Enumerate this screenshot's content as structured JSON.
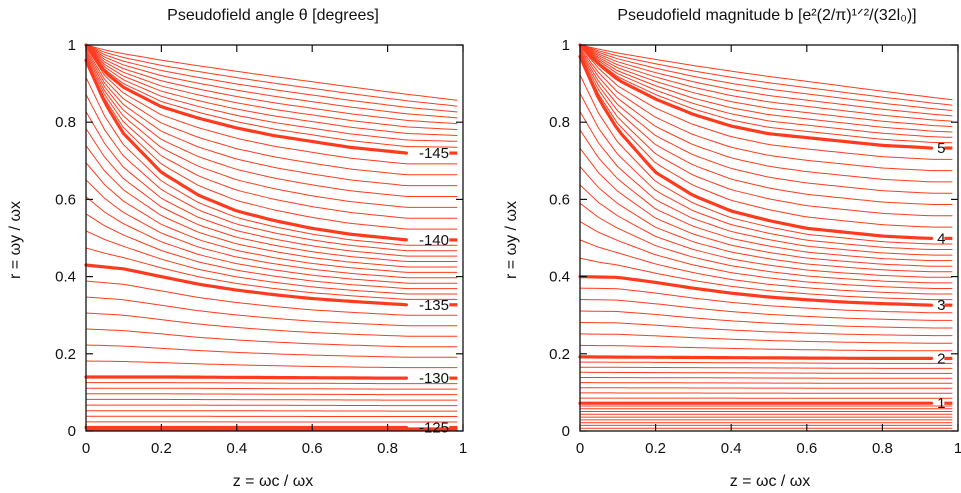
{
  "chart_data": [
    {
      "type": "line",
      "subtype": "contour",
      "title": "Pseudofield angle θ [degrees]",
      "xlabel": "z = ωc / ωx",
      "ylabel": "r = ωy / ωx",
      "xlim": [
        0,
        1
      ],
      "ylim": [
        0,
        1
      ],
      "xticks": [
        "0",
        "0.2",
        "0.4",
        "0.6",
        "0.8",
        "1"
      ],
      "yticks": [
        "0",
        "0.2",
        "0.4",
        "0.6",
        "0.8",
        "1"
      ],
      "grid": false,
      "color": "#ff3b1f",
      "labeled_levels": [
        {
          "label": "-145",
          "x": [
            0,
            0.05,
            0.1,
            0.2,
            0.3,
            0.4,
            0.5,
            0.6,
            0.7,
            0.8,
            0.85
          ],
          "y": [
            1.0,
            0.93,
            0.89,
            0.84,
            0.81,
            0.785,
            0.765,
            0.75,
            0.735,
            0.725,
            0.72
          ]
        },
        {
          "label": "-140",
          "x": [
            0,
            0.05,
            0.1,
            0.2,
            0.3,
            0.4,
            0.5,
            0.6,
            0.7,
            0.8,
            0.85
          ],
          "y": [
            0.96,
            0.85,
            0.77,
            0.67,
            0.61,
            0.57,
            0.545,
            0.525,
            0.51,
            0.5,
            0.495
          ]
        },
        {
          "label": "-135",
          "x": [
            0,
            0.1,
            0.2,
            0.3,
            0.4,
            0.5,
            0.6,
            0.7,
            0.8,
            0.85
          ],
          "y": [
            0.43,
            0.42,
            0.4,
            0.38,
            0.365,
            0.353,
            0.343,
            0.336,
            0.33,
            0.327
          ]
        },
        {
          "label": "-130",
          "x": [
            0,
            0.2,
            0.4,
            0.6,
            0.8,
            0.85
          ],
          "y": [
            0.14,
            0.14,
            0.139,
            0.138,
            0.137,
            0.137
          ]
        },
        {
          "label": "-125",
          "x": [
            0,
            0.2,
            0.4,
            0.6,
            0.8,
            0.85
          ],
          "y": [
            0.009,
            0.009,
            0.009,
            0.009,
            0.009,
            0.009
          ]
        }
      ],
      "line_label_x": 0.87
    },
    {
      "type": "line",
      "subtype": "contour",
      "title": "Pseudofield magnitude b [e²(2/π)¹ᐟ²/(32l₀)]",
      "xlabel": "z = ωc / ωx",
      "ylabel": "r = ωy / ωx",
      "xlim": [
        0,
        1
      ],
      "ylim": [
        0,
        1
      ],
      "xticks": [
        "0",
        "0.2",
        "0.4",
        "0.6",
        "0.8",
        "1"
      ],
      "yticks": [
        "0",
        "0.2",
        "0.4",
        "0.6",
        "0.8",
        "1"
      ],
      "grid": false,
      "color": "#ff3b1f",
      "labeled_levels": [
        {
          "label": "5",
          "x": [
            0,
            0.05,
            0.1,
            0.2,
            0.3,
            0.4,
            0.5,
            0.6,
            0.7,
            0.8,
            0.9,
            0.93
          ],
          "y": [
            1.0,
            0.95,
            0.91,
            0.86,
            0.82,
            0.79,
            0.77,
            0.76,
            0.75,
            0.74,
            0.735,
            0.733
          ]
        },
        {
          "label": "4",
          "x": [
            0,
            0.05,
            0.1,
            0.2,
            0.3,
            0.4,
            0.5,
            0.6,
            0.7,
            0.8,
            0.9,
            0.93
          ],
          "y": [
            0.97,
            0.86,
            0.78,
            0.67,
            0.61,
            0.57,
            0.545,
            0.525,
            0.515,
            0.505,
            0.5,
            0.499
          ]
        },
        {
          "label": "3",
          "x": [
            0,
            0.1,
            0.2,
            0.3,
            0.4,
            0.5,
            0.6,
            0.7,
            0.8,
            0.9,
            0.93
          ],
          "y": [
            0.4,
            0.398,
            0.385,
            0.37,
            0.357,
            0.347,
            0.34,
            0.334,
            0.33,
            0.327,
            0.326
          ]
        },
        {
          "label": "2",
          "x": [
            0,
            0.2,
            0.4,
            0.6,
            0.8,
            0.93
          ],
          "y": [
            0.192,
            0.191,
            0.19,
            0.189,
            0.188,
            0.188
          ]
        },
        {
          "label": "1",
          "x": [
            0,
            0.2,
            0.4,
            0.6,
            0.8,
            0.93
          ],
          "y": [
            0.072,
            0.072,
            0.072,
            0.072,
            0.072,
            0.072
          ]
        }
      ],
      "line_label_x": 0.94
    }
  ]
}
